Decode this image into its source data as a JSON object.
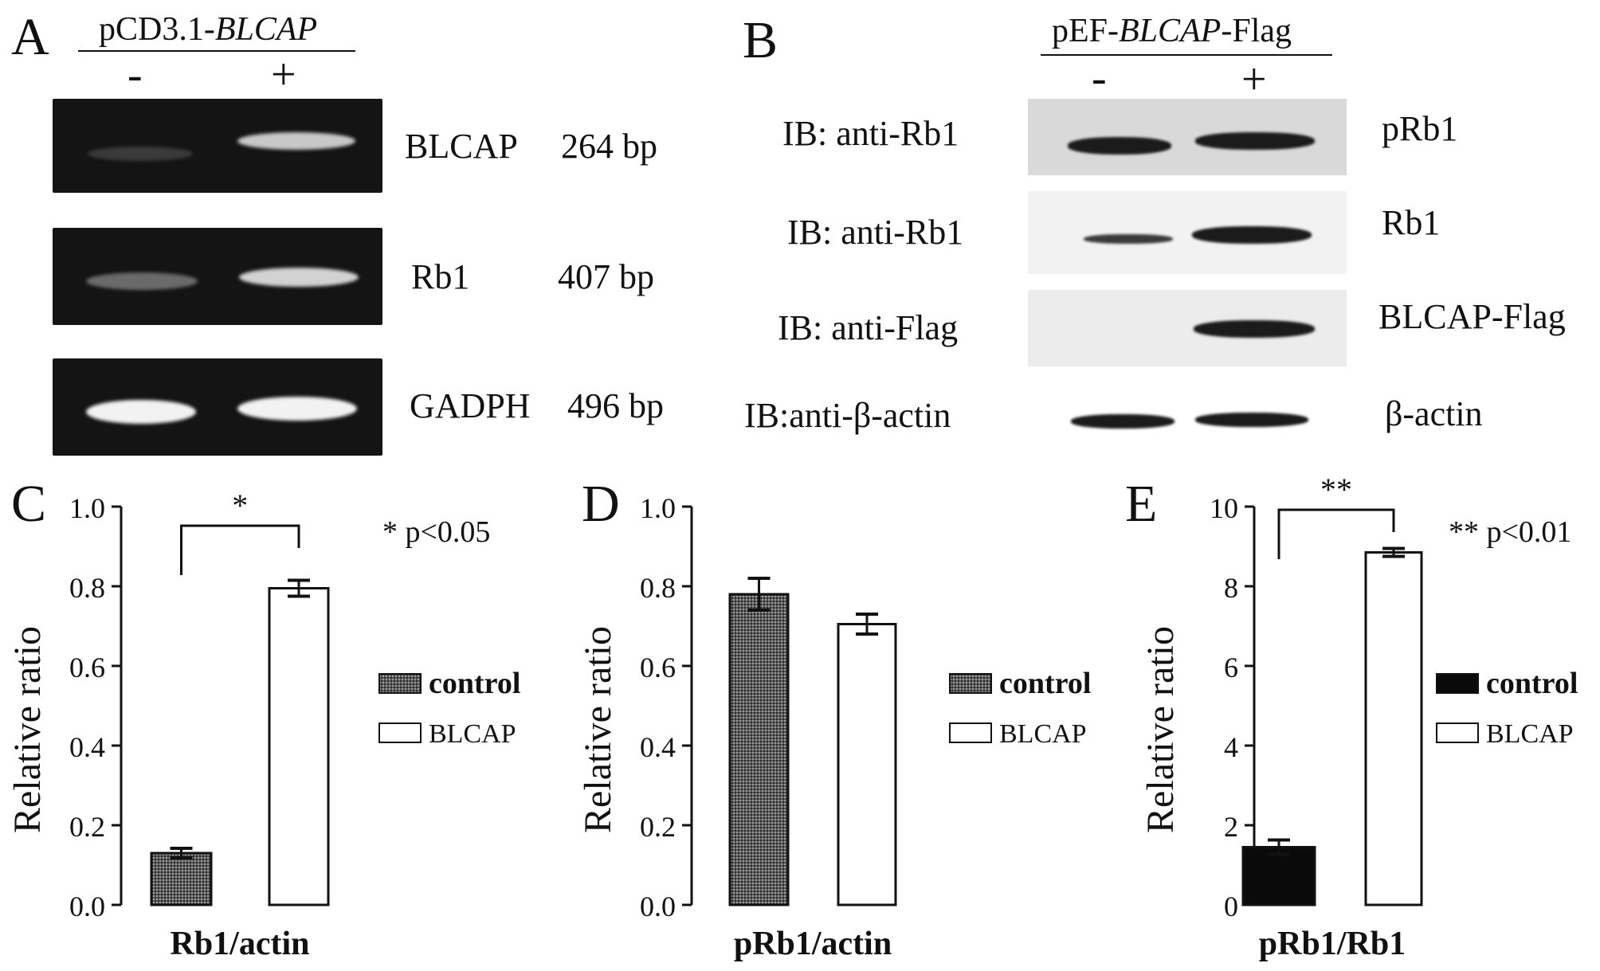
{
  "panel_a": {
    "letter": "A",
    "construct_prefix": "pCD3.1-",
    "construct_italic": "BLCAP",
    "minus": "-",
    "plus": "+",
    "rows": [
      {
        "gene": "BLCAP",
        "size": "264 bp"
      },
      {
        "gene": "Rb1",
        "size": "407 bp"
      },
      {
        "gene": "GADPH",
        "size": "496 bp"
      }
    ]
  },
  "panel_b": {
    "letter": "B",
    "construct_prefix": "pEF-",
    "construct_italic": "BLCAP",
    "construct_suffix": "-Flag",
    "minus": "-",
    "plus": "+",
    "rows": [
      {
        "antibody": "IB: anti-Rb1",
        "target": "pRb1"
      },
      {
        "antibody": "IB: anti-Rb1",
        "target": "Rb1"
      },
      {
        "antibody": "IB: anti-Flag",
        "target": "BLCAP-Flag"
      },
      {
        "antibody": "IB:anti-β-actin",
        "target": "β-actin"
      }
    ]
  },
  "chart_data": [
    {
      "panel": "C",
      "type": "bar",
      "categories": [
        "control",
        "BLCAP"
      ],
      "values": [
        0.13,
        0.795
      ],
      "errors": [
        0.012,
        0.02
      ],
      "ylabel": "Relative ratio",
      "xlabel": "Rb1/actin",
      "ylim": [
        0,
        1.0
      ],
      "yticks": [
        "0.0",
        "0.2",
        "0.4",
        "0.6",
        "0.8",
        "1.0"
      ],
      "significance": "*",
      "annotation": "* p<0.05",
      "legend": [
        "control",
        "BLCAP"
      ],
      "fills": [
        "#5b5b5b",
        "#ffffff"
      ]
    },
    {
      "panel": "D",
      "type": "bar",
      "categories": [
        "control",
        "BLCAP"
      ],
      "values": [
        0.78,
        0.705
      ],
      "errors": [
        0.04,
        0.025
      ],
      "ylabel": "Relative ratio",
      "xlabel": "pRb1/actin",
      "ylim": [
        0,
        1.0
      ],
      "yticks": [
        "0.0",
        "0.2",
        "0.4",
        "0.6",
        "0.8",
        "1.0"
      ],
      "significance": "",
      "annotation": "",
      "legend": [
        "control",
        "BLCAP"
      ],
      "fills": [
        "#5b5b5b",
        "#ffffff"
      ]
    },
    {
      "panel": "E",
      "type": "bar",
      "categories": [
        "control",
        "BLCAP"
      ],
      "values": [
        1.45,
        8.85
      ],
      "errors": [
        0.18,
        0.1
      ],
      "ylabel": "Relative ratio",
      "xlabel": "pRb1/Rb1",
      "ylim": [
        0,
        10
      ],
      "yticks": [
        "0",
        "2",
        "4",
        "6",
        "8",
        "10"
      ],
      "significance": "**",
      "annotation": "** p<0.01",
      "legend": [
        "control",
        "BLCAP"
      ],
      "fills": [
        "#0a0a0a",
        "#ffffff"
      ]
    }
  ]
}
